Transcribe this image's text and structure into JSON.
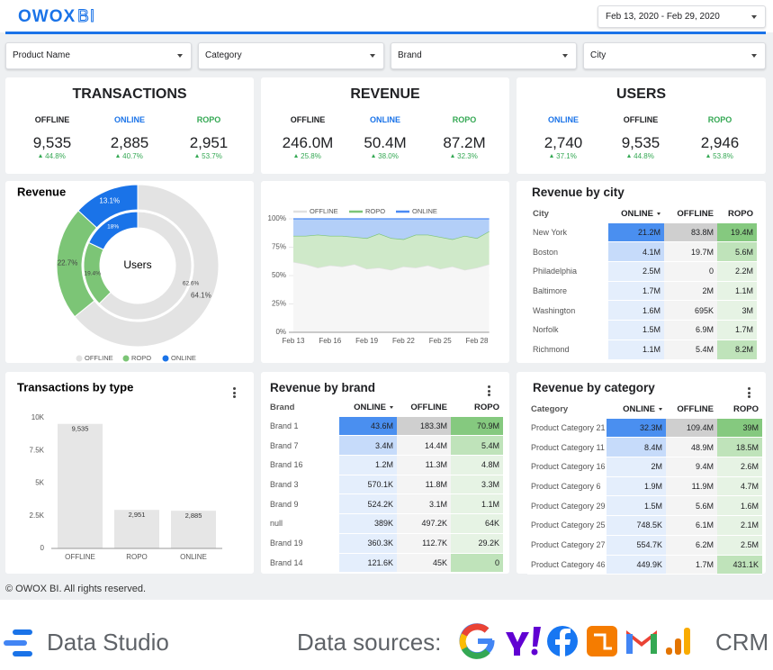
{
  "header": {
    "logo_main": "OWOX",
    "logo_sub": "BI",
    "date_range": "Feb 13, 2020 - Feb 29, 2020"
  },
  "filters": [
    "Product Name",
    "Category",
    "Brand",
    "City"
  ],
  "kpi_cards": [
    {
      "title": "TRANSACTIONS",
      "items": [
        {
          "label": "OFFLINE",
          "color": "#202124",
          "value": "9,535",
          "change": "44.8%"
        },
        {
          "label": "ONLINE",
          "color": "#1a73e8",
          "value": "2,885",
          "change": "40.7%"
        },
        {
          "label": "ROPO",
          "color": "#34a853",
          "value": "2,951",
          "change": "53.7%"
        }
      ]
    },
    {
      "title": "REVENUE",
      "items": [
        {
          "label": "OFFLINE",
          "color": "#202124",
          "value": "246.0M",
          "change": "25.8%"
        },
        {
          "label": "ONLINE",
          "color": "#1a73e8",
          "value": "50.4M",
          "change": "38.0%"
        },
        {
          "label": "ROPO",
          "color": "#34a853",
          "value": "87.2M",
          "change": "32.3%"
        }
      ]
    },
    {
      "title": "USERS",
      "items": [
        {
          "label": "ONLINE",
          "color": "#1a73e8",
          "value": "2,740",
          "change": "37.1%"
        },
        {
          "label": "OFFLINE",
          "color": "#202124",
          "value": "9,535",
          "change": "44.8%"
        },
        {
          "label": "ROPO",
          "color": "#34a853",
          "value": "2,946",
          "change": "53.8%"
        }
      ]
    }
  ],
  "chart_data": [
    {
      "type": "pie",
      "title": "Revenue",
      "categories": [
        "OFFLINE",
        "ROPO",
        "ONLINE"
      ],
      "colors": [
        "#e3e3e3",
        "#7cc576",
        "#1a73e8"
      ],
      "rings": [
        {
          "values": [
            64.1,
            22.7,
            13.1
          ],
          "value_labels": [
            "64.1%",
            "22.7%",
            "13.1%"
          ]
        },
        {
          "label": "Users",
          "values": [
            62.6,
            19.4,
            18
          ],
          "value_labels": [
            "62.6%",
            "19.4%",
            "18%"
          ]
        }
      ]
    },
    {
      "type": "area",
      "stacked": true,
      "categories": [
        "Feb 13",
        null,
        null,
        "Feb 16",
        null,
        null,
        "Feb 19",
        null,
        null,
        "Feb 22",
        null,
        null,
        "Feb 25",
        null,
        null,
        "Feb 28",
        null
      ],
      "series": [
        {
          "name": "OFFLINE",
          "color": "#e0e0e0",
          "fill": "#f6f6f6",
          "values": [
            62,
            60,
            57,
            59,
            58,
            60,
            56,
            57,
            55,
            58,
            57,
            59,
            56,
            58,
            55,
            57,
            60
          ]
        },
        {
          "name": "ROPO",
          "color": "#7cc576",
          "fill": "#cfe9c9",
          "values": [
            23,
            25,
            29,
            26,
            27,
            24,
            27,
            30,
            28,
            24,
            29,
            27,
            28,
            24,
            30,
            26,
            29
          ]
        },
        {
          "name": "ONLINE",
          "color": "#4a8af4",
          "fill": "#b3cff8",
          "values": [
            15,
            15,
            14,
            15,
            15,
            16,
            17,
            13,
            17,
            18,
            14,
            14,
            16,
            18,
            15,
            17,
            11
          ]
        }
      ],
      "ylim": [
        0,
        100
      ],
      "yticks": [
        {
          "value": 0,
          "label": "0%"
        },
        {
          "value": 25,
          "label": "25%"
        },
        {
          "value": 50,
          "label": "50%"
        },
        {
          "value": 75,
          "label": "75%"
        },
        {
          "value": 100,
          "label": "100%"
        }
      ],
      "grid": true
    },
    {
      "type": "bar",
      "title": "Transactions by type",
      "categories": [
        "OFFLINE",
        "ROPO",
        "ONLINE"
      ],
      "values": [
        9535,
        2951,
        2885
      ],
      "value_labels": [
        "9,535",
        "2,951",
        "2,885"
      ],
      "color": "#e6e6e6",
      "ylim": [
        0,
        10000
      ],
      "yticks": [
        0,
        {
          "value": 2500,
          "label": "2.5K"
        },
        {
          "value": 5000,
          "label": "5K"
        },
        {
          "value": 7500,
          "label": "7.5K"
        },
        {
          "value": 10000,
          "label": "10K"
        }
      ],
      "grid": false
    }
  ],
  "tables": [
    {
      "title": "Revenue by city",
      "columns": [
        "City",
        "ONLINE",
        "OFFLINE",
        "ROPO"
      ],
      "rows": [
        [
          "New York",
          "21.2M",
          "83.8M",
          "19.4M"
        ],
        [
          "Boston",
          "4.1M",
          "19.7M",
          "5.6M"
        ],
        [
          "Philadelphia",
          "2.5M",
          "0",
          "2.2M"
        ],
        [
          "Baltimore",
          "1.7M",
          "2M",
          "1.1M"
        ],
        [
          "Washington",
          "1.6M",
          "695K",
          "3M"
        ],
        [
          "Norfolk",
          "1.5M",
          "6.9M",
          "1.7M"
        ],
        [
          "Richmond",
          "1.1M",
          "5.4M",
          "8.2M"
        ]
      ]
    },
    {
      "title": "Revenue by brand",
      "columns": [
        "Brand",
        "ONLINE",
        "OFFLINE",
        "ROPO"
      ],
      "rows": [
        [
          "Brand 1",
          "43.6M",
          "183.3M",
          "70.9M"
        ],
        [
          "Brand 7",
          "3.4M",
          "14.4M",
          "5.4M"
        ],
        [
          "Brand 16",
          "1.2M",
          "11.3M",
          "4.8M"
        ],
        [
          "Brand 3",
          "570.1K",
          "11.8M",
          "3.3M"
        ],
        [
          "Brand 9",
          "524.2K",
          "3.1M",
          "1.1M"
        ],
        [
          "null",
          "389K",
          "497.2K",
          "64K"
        ],
        [
          "Brand 19",
          "360.3K",
          "112.7K",
          "29.2K"
        ],
        [
          "Brand 14",
          "121.6K",
          "45K",
          "0"
        ]
      ]
    },
    {
      "title": "Revenue by category",
      "columns": [
        "Category",
        "ONLINE",
        "OFFLINE",
        "ROPO"
      ],
      "rows": [
        [
          "Product Category 21",
          "32.3M",
          "109.4M",
          "39M"
        ],
        [
          "Product Category 11",
          "8.4M",
          "48.9M",
          "18.5M"
        ],
        [
          "Product Category 16",
          "2M",
          "9.4M",
          "2.6M"
        ],
        [
          "Product Category 6",
          "1.9M",
          "11.9M",
          "4.7M"
        ],
        [
          "Product Category 29",
          "1.5M",
          "5.6M",
          "1.6M"
        ],
        [
          "Product Category 25",
          "748.5K",
          "6.1M",
          "2.1M"
        ],
        [
          "Product Category 27",
          "554.7K",
          "6.2M",
          "2.5M"
        ],
        [
          "Product Category 46",
          "449.9K",
          "1.7M",
          "431.1K"
        ]
      ]
    }
  ],
  "footer": "© OWOX BI. All rights reserved.",
  "banner": {
    "product": "Data Studio",
    "sources_label": "Data sources:",
    "crm": "CRM"
  }
}
